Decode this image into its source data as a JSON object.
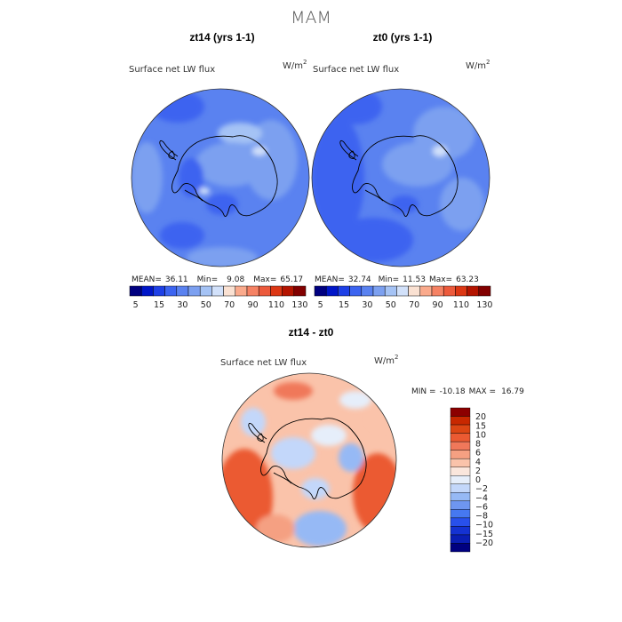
{
  "figure": {
    "title": "MAM",
    "colors": {
      "coastline": "#000000",
      "flux_sequential": [
        "#000080",
        "#0016c8",
        "#1e40e6",
        "#3c64f0",
        "#5a82f0",
        "#7ca0f0",
        "#a5c3f5",
        "#d2e1fa",
        "#fae1d2",
        "#faaa8c",
        "#f58264",
        "#ec5a3c",
        "#dc3714",
        "#b41400",
        "#820000"
      ],
      "diff_diverging": [
        "#000080",
        "#0a1eb4",
        "#1432d2",
        "#2850eb",
        "#4678f0",
        "#6e96f0",
        "#96b9f5",
        "#c3d7fa",
        "#e6eefa",
        "#fae6dc",
        "#fac3aa",
        "#f5a082",
        "#f0785a",
        "#eb5a32",
        "#dc4614",
        "#c82800",
        "#8c0000"
      ]
    }
  },
  "chart_data": [
    {
      "type": "heatmap",
      "title": "zt14 (yrs 1-1)",
      "subtitle": "Surface net LW flux",
      "units": "W/m",
      "units_exp": "2",
      "projection": "polar stereographic (south pole)",
      "stats": {
        "mean_label": "MEAN=",
        "mean": "36.11",
        "min_label": "Min=",
        "min": "9.08",
        "max_label": "Max=",
        "max": "65.17"
      },
      "colorbar": {
        "orientation": "horizontal",
        "levels": [
          5,
          10,
          15,
          20,
          30,
          40,
          50,
          60,
          70,
          80,
          90,
          100,
          110,
          120,
          130
        ],
        "tick_labels": [
          "5",
          "15",
          "30",
          "50",
          "70",
          "90",
          "110",
          "130"
        ]
      }
    },
    {
      "type": "heatmap",
      "title": "zt0 (yrs 1-1)",
      "subtitle": "Surface net LW flux",
      "units": "W/m",
      "units_exp": "2",
      "projection": "polar stereographic (south pole)",
      "stats": {
        "mean_label": "MEAN=",
        "mean": "32.74",
        "min_label": "Min=",
        "min": "11.53",
        "max_label": "Max=",
        "max": "63.23"
      },
      "colorbar": {
        "orientation": "horizontal",
        "levels": [
          5,
          10,
          15,
          20,
          30,
          40,
          50,
          60,
          70,
          80,
          90,
          100,
          110,
          120,
          130
        ],
        "tick_labels": [
          "5",
          "15",
          "30",
          "50",
          "70",
          "90",
          "110",
          "130"
        ]
      }
    },
    {
      "type": "heatmap",
      "title": "zt14 - zt0",
      "subtitle": "Surface net LW flux",
      "units": "W/m",
      "units_exp": "2",
      "projection": "polar stereographic (south pole)",
      "stats": {
        "min_label": "MIN =",
        "min": "-10.18",
        "max_label": "MAX =",
        "max": "16.79"
      },
      "colorbar": {
        "orientation": "vertical",
        "tick_labels": [
          "20",
          "15",
          "10",
          "8",
          "6",
          "4",
          "2",
          "0",
          "−2",
          "−4",
          "−6",
          "−8",
          "−10",
          "−15",
          "−20"
        ]
      }
    }
  ]
}
